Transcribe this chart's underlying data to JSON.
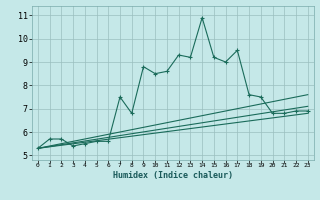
{
  "title": "",
  "xlabel": "Humidex (Indice chaleur)",
  "bg_color": "#c5e8e8",
  "line_color": "#1a6b5a",
  "grid_color": "#9bbfbf",
  "xlim": [
    -0.5,
    23.5
  ],
  "ylim": [
    4.8,
    11.4
  ],
  "xticks": [
    0,
    1,
    2,
    3,
    4,
    5,
    6,
    7,
    8,
    9,
    10,
    11,
    12,
    13,
    14,
    15,
    16,
    17,
    18,
    19,
    20,
    21,
    22,
    23
  ],
  "yticks": [
    5,
    6,
    7,
    8,
    9,
    10,
    11
  ],
  "series1_x": [
    0,
    1,
    2,
    3,
    4,
    5,
    6,
    7,
    8,
    9,
    10,
    11,
    12,
    13,
    14,
    15,
    16,
    17,
    18,
    19,
    20,
    21,
    22,
    23
  ],
  "series1_y": [
    5.3,
    5.7,
    5.7,
    5.4,
    5.5,
    5.6,
    5.6,
    7.5,
    6.8,
    8.8,
    8.5,
    8.6,
    9.3,
    9.2,
    10.9,
    9.2,
    9.0,
    9.5,
    7.6,
    7.5,
    6.8,
    6.8,
    6.9,
    6.9
  ],
  "series2_x": [
    0,
    23
  ],
  "series2_y": [
    5.3,
    7.6
  ],
  "series3_x": [
    0,
    23
  ],
  "series3_y": [
    5.3,
    7.1
  ],
  "series4_x": [
    0,
    23
  ],
  "series4_y": [
    5.3,
    6.8
  ]
}
